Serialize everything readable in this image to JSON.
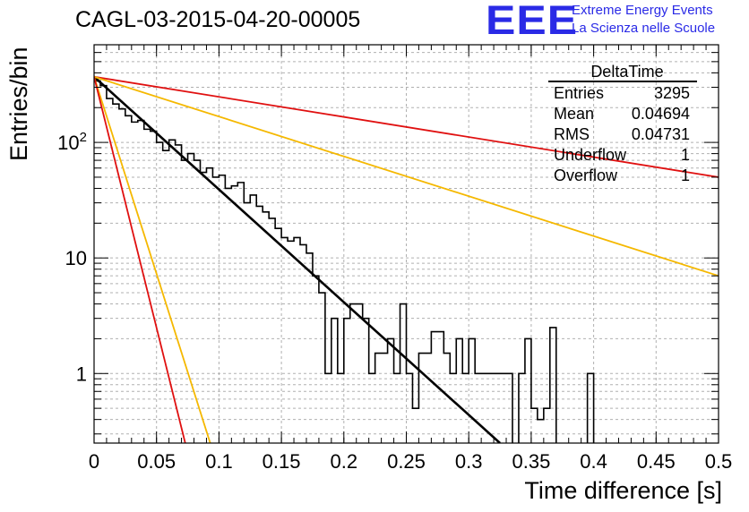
{
  "title": "CAGL-03-2015-04-20-00005",
  "logo": {
    "mark": "EEE",
    "line1": "Extreme Energy Events",
    "line2": "La Scienza nelle Scuole"
  },
  "stats_box": {
    "name": "DeltaTime",
    "rows": [
      {
        "label": "Entries",
        "value": "3295"
      },
      {
        "label": "Mean",
        "value": "0.04694"
      },
      {
        "label": "RMS",
        "value": "0.04731"
      },
      {
        "label": "Underflow",
        "value": "1"
      },
      {
        "label": "Overflow",
        "value": "1"
      }
    ]
  },
  "colors": {
    "histogram": "#000000",
    "fit_black": "#000000",
    "fit_red": "#e01010",
    "fit_yellow": "#f5b800",
    "grid": "#b0b0b0"
  },
  "chart_data": {
    "type": "line",
    "title": "CAGL-03-2015-04-20-00005",
    "xlabel": "Time difference [s]",
    "ylabel": "Entries/bin",
    "xlim": [
      0,
      0.5
    ],
    "ylim": [
      0.25,
      700
    ],
    "yscale": "log",
    "grid": true,
    "x_ticks": [
      "0",
      "0.05",
      "0.1",
      "0.15",
      "0.2",
      "0.25",
      "0.3",
      "0.35",
      "0.4",
      "0.45",
      "0.5"
    ],
    "y_ticks": [
      {
        "value": 1,
        "label": "1"
      },
      {
        "value": 10,
        "label": "10"
      },
      {
        "value": 100,
        "label": "10^2"
      }
    ],
    "histogram": {
      "bin_width": 0.005,
      "counts": [
        340,
        310,
        240,
        215,
        195,
        170,
        150,
        155,
        130,
        125,
        100,
        85,
        105,
        95,
        70,
        80,
        70,
        55,
        60,
        50,
        52,
        40,
        42,
        45,
        30,
        35,
        28,
        25,
        22,
        18,
        15,
        14,
        15,
        13,
        11,
        7,
        5,
        1,
        3,
        1,
        3,
        4,
        4,
        3,
        1,
        1.5,
        1.5,
        2,
        1,
        4,
        1,
        0.5,
        1.5,
        1.5,
        2.3,
        2.3,
        1.5,
        1,
        2,
        1,
        2,
        1,
        1,
        1,
        1,
        1,
        1,
        0.1,
        1,
        2,
        0.5,
        0.4,
        0.5,
        2.5,
        0.1,
        0.1,
        0.1,
        0.1,
        0.1,
        1,
        0.1,
        0.1,
        0.1,
        0.1,
        0.1,
        0.1,
        0.1,
        0.1,
        0.1,
        0.1,
        0.1,
        0.1,
        0.1,
        0.1,
        0.1,
        0.1,
        0.1,
        0.1,
        0.1,
        0.1
      ]
    },
    "series": [
      {
        "color": "#000000",
        "x": [
          0,
          0.325
        ],
        "y": [
          370,
          0.25
        ]
      },
      {
        "color": "#e01010",
        "x": [
          0,
          0.5
        ],
        "y": [
          370,
          50
        ]
      },
      {
        "color": "#f5b800",
        "x": [
          0,
          0.5
        ],
        "y": [
          370,
          7
        ]
      },
      {
        "color": "#f5b800",
        "x": [
          0,
          0.093
        ],
        "y": [
          370,
          0.25
        ]
      },
      {
        "color": "#e01010",
        "x": [
          0,
          0.073
        ],
        "y": [
          370,
          0.25
        ]
      }
    ]
  }
}
